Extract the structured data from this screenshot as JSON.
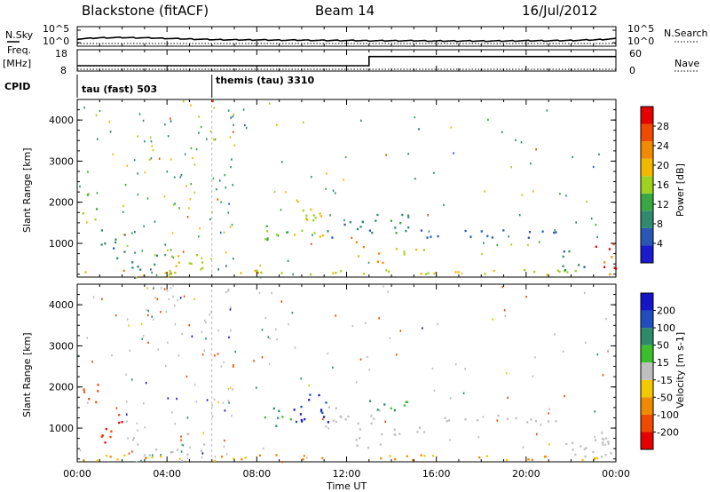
{
  "header": {
    "station": "Blackstone (fitACF)",
    "beam": "Beam 14",
    "date": "16/Jul/2012"
  },
  "left_labels": {
    "nsky": "N.Sky",
    "freq": "Freq.",
    "freq_unit": "[MHz]",
    "cpid": "CPID"
  },
  "right_labels": {
    "nsearch": "N.Search",
    "nave": "Nave"
  },
  "cpid_segments": [
    {
      "label": "tau (fast) 503",
      "start_hour": 0
    },
    {
      "label": "themis (tau) 3310",
      "start_hour": 6.0
    }
  ],
  "colors": {
    "axis": "#000000",
    "power_scale": [
      "#1a1acf",
      "#2a57b5",
      "#2f8a6e",
      "#3aa842",
      "#9fd21f",
      "#f2b800",
      "#f08a00",
      "#ef4a00",
      "#e60000"
    ],
    "velocity_scale": [
      "#1515c8",
      "#1f4fbf",
      "#2e8a6a",
      "#3cbf2c",
      "#bfbfbf",
      "#f2c800",
      "#f08a00",
      "#ef4a00",
      "#e60000"
    ]
  },
  "chart_data": [
    {
      "type": "line",
      "panel": "noise",
      "title": "",
      "ylabel_left": "N.Sky",
      "ylabel_right": "N.Search",
      "ytick_labels": [
        "10^5",
        "10^0"
      ],
      "xlim_hours": [
        0,
        24
      ],
      "series": [
        {
          "name": "N.Sky",
          "x_hours": [
            0,
            1,
            2,
            3,
            4,
            5,
            6,
            7,
            8,
            9,
            10,
            11,
            12,
            13,
            14,
            15,
            16,
            17,
            18,
            19,
            20,
            21,
            22,
            23,
            24
          ],
          "values_log10": [
            1.6,
            2.0,
            2.1,
            2.0,
            1.8,
            1.6,
            1.4,
            1.3,
            1.3,
            1.2,
            1.2,
            1.1,
            1.1,
            1.0,
            1.0,
            1.0,
            0.9,
            0.9,
            0.9,
            0.9,
            1.0,
            1.0,
            1.1,
            1.3,
            1.7
          ]
        },
        {
          "name": "N.Search",
          "x_hours": [
            0,
            24
          ],
          "values_log10": [
            0.0,
            0.0
          ]
        }
      ]
    },
    {
      "type": "line",
      "panel": "freq_nave",
      "ylabel_left": "Freq. [MHz]",
      "ylabel_right": "Nave",
      "yticks_left": [
        8,
        18
      ],
      "yticks_right": [
        0,
        60
      ],
      "series": [
        {
          "name": "Freq.",
          "x_hours": [
            0,
            13.0,
            13.0,
            24
          ],
          "values": [
            10.5,
            10.5,
            14.8,
            14.8
          ]
        },
        {
          "name": "Nave",
          "x_hours": [
            0,
            24
          ],
          "values": [
            5,
            5
          ]
        }
      ]
    },
    {
      "type": "heatmap",
      "panel": "power",
      "ylabel": "Slant Range [km]",
      "yticks": [
        1000,
        2000,
        3000,
        4000
      ],
      "ylim": [
        180,
        4500
      ],
      "xlim_hours": [
        0,
        24
      ],
      "colorbar_label": "Power [dB]",
      "colorbar_ticks": [
        4,
        8,
        12,
        16,
        20,
        24,
        28
      ],
      "colorbar_range": [
        0,
        32
      ],
      "patches": [
        {
          "t0": 0.2,
          "t1": 1.0,
          "r0": 1300,
          "r1": 2200,
          "value": 14
        },
        {
          "t0": 1.0,
          "t1": 2.2,
          "r0": 600,
          "r1": 1300,
          "value": 8
        },
        {
          "t0": 2.4,
          "t1": 3.6,
          "r0": 250,
          "r1": 700,
          "value": 10
        },
        {
          "t0": 4.0,
          "t1": 5.8,
          "r0": 250,
          "r1": 700,
          "value": 16
        },
        {
          "t0": 0.0,
          "t1": 24.0,
          "r0": 180,
          "r1": 330,
          "value": 18
        },
        {
          "t0": 8.3,
          "t1": 9.5,
          "r0": 1000,
          "r1": 1500,
          "value": 14
        },
        {
          "t0": 9.5,
          "t1": 11.2,
          "r0": 1100,
          "r1": 1800,
          "value": 18
        },
        {
          "t0": 11.0,
          "t1": 13.2,
          "r0": 1000,
          "r1": 1500,
          "value": 8
        },
        {
          "t0": 12.2,
          "t1": 13.6,
          "r0": 450,
          "r1": 1100,
          "value": 20
        },
        {
          "t0": 13.0,
          "t1": 14.8,
          "r0": 1200,
          "r1": 1700,
          "value": 10
        },
        {
          "t0": 14.0,
          "t1": 15.6,
          "r0": 700,
          "r1": 1000,
          "value": 16
        },
        {
          "t0": 15.0,
          "t1": 21.5,
          "r0": 1100,
          "r1": 1300,
          "value": 6
        },
        {
          "t0": 21.6,
          "t1": 22.8,
          "r0": 250,
          "r1": 800,
          "value": 8
        },
        {
          "t0": 22.9,
          "t1": 24.0,
          "r0": 200,
          "r1": 1000,
          "value": 28
        }
      ]
    },
    {
      "type": "heatmap",
      "panel": "velocity",
      "ylabel": "Slant Range [km]",
      "yticks": [
        1000,
        2000,
        3000,
        4000
      ],
      "ylim": [
        180,
        4500
      ],
      "xlim_hours": [
        0,
        24
      ],
      "xtick_labels": [
        "00:00",
        "04:00",
        "08:00",
        "12:00",
        "16:00",
        "20:00",
        "00:00"
      ],
      "xlabel": "Time UT",
      "colorbar_label": "Velocity [m s-1]",
      "colorbar_ticks": [
        200,
        100,
        50,
        15,
        -15,
        -50,
        -100,
        -200
      ],
      "patches": [
        {
          "t0": 0.2,
          "t1": 1.0,
          "r0": 1300,
          "r1": 2200,
          "value": -200
        },
        {
          "t0": 1.0,
          "t1": 2.2,
          "r0": 600,
          "r1": 1300,
          "value": -200
        },
        {
          "t0": 2.4,
          "t1": 3.6,
          "r0": 250,
          "r1": 700,
          "value": 0
        },
        {
          "t0": 4.0,
          "t1": 5.8,
          "r0": 250,
          "r1": 700,
          "value": 0
        },
        {
          "t0": 0.0,
          "t1": 24.0,
          "r0": 180,
          "r1": 330,
          "value": -50
        },
        {
          "t0": 8.3,
          "t1": 9.5,
          "r0": 1000,
          "r1": 1500,
          "value": 50
        },
        {
          "t0": 9.5,
          "t1": 11.2,
          "r0": 1100,
          "r1": 1800,
          "value": 200
        },
        {
          "t0": 11.0,
          "t1": 13.2,
          "r0": 1000,
          "r1": 1500,
          "value": 0
        },
        {
          "t0": 12.2,
          "t1": 13.6,
          "r0": 450,
          "r1": 1100,
          "value": 0
        },
        {
          "t0": 13.0,
          "t1": 14.8,
          "r0": 1200,
          "r1": 1700,
          "value": 50
        },
        {
          "t0": 14.0,
          "t1": 15.6,
          "r0": 700,
          "r1": 1000,
          "value": 0
        },
        {
          "t0": 15.0,
          "t1": 21.5,
          "r0": 1100,
          "r1": 1300,
          "value": 0
        },
        {
          "t0": 21.6,
          "t1": 22.8,
          "r0": 250,
          "r1": 800,
          "value": 0
        },
        {
          "t0": 22.9,
          "t1": 24.0,
          "r0": 200,
          "r1": 1000,
          "value": 0
        }
      ]
    }
  ]
}
